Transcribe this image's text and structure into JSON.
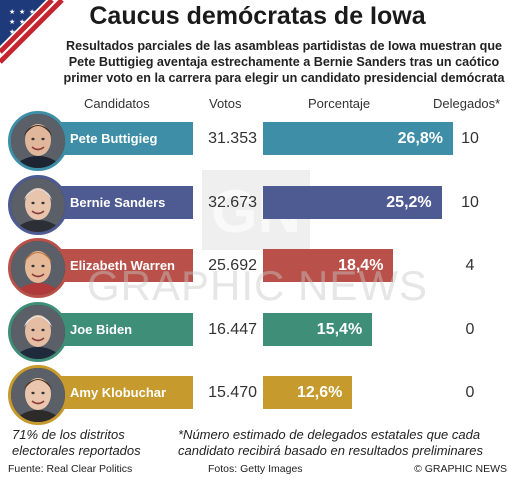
{
  "header": {
    "title": "Caucus demócratas de Iowa",
    "subtitle": "Resultados parciales de las asambleas partidistas de Iowa muestran que Pete Buttigieg aventaja estrechamente a Bernie Sanders tras un caótico primer voto en la carrera para elegir un candidato presidencial demócrata"
  },
  "columns": {
    "candidates": "Candidatos",
    "votes": "Votos",
    "percent": "Porcentaje",
    "delegates": "Delegados*"
  },
  "chart_data": {
    "type": "bar",
    "categories": [
      "Pete Buttigieg",
      "Bernie Sanders",
      "Elizabeth Warren",
      "Joe Biden",
      "Amy Klobuchar"
    ],
    "values": [
      26.8,
      25.2,
      18.4,
      15.4,
      12.6
    ],
    "value_labels": [
      "26,8%",
      "25,2%",
      "18,4%",
      "15,4%",
      "12,6%"
    ],
    "votes": [
      "31.353",
      "32.673",
      "25.692",
      "16.447",
      "15.470"
    ],
    "delegates": [
      "10",
      "10",
      "4",
      "0",
      "0"
    ],
    "colors": [
      "#3d8ea6",
      "#4e5b92",
      "#b9514a",
      "#3f8f78",
      "#c69a2c"
    ],
    "xlim": [
      0,
      26.8
    ]
  },
  "notes": {
    "reported": "71% de los distritos electorales reportados",
    "delegates_note": "*Número estimado de delegados estatales que cada candidato recibirá basado en resultados preliminares"
  },
  "footer": {
    "source": "Fuente: Real Clear Politics",
    "photos": "Fotos: Getty Images",
    "copyright": "© GRAPHIC NEWS"
  },
  "watermark": "GRAPHIC NEWS"
}
